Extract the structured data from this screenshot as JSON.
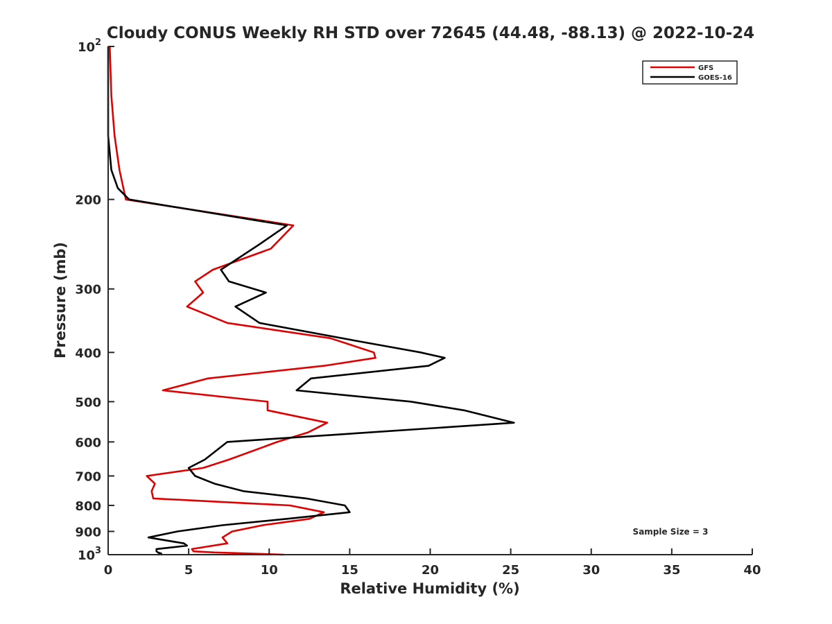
{
  "chart_data": {
    "type": "line",
    "title": "Cloudy CONUS Weekly RH STD over 72645 (44.48, -88.13) @ 2022-10-24",
    "xlabel": "Relative Humidity (%)",
    "ylabel": "Pressure (mb)",
    "xlim": [
      0,
      40
    ],
    "ylim": [
      100,
      1000
    ],
    "y_scale": "log",
    "y_reversed": true,
    "grid": false,
    "legend_position": "top-right",
    "x_ticks": [
      "0",
      "5",
      "10",
      "15",
      "20",
      "25",
      "30",
      "35",
      "40"
    ],
    "y_ticks": [
      {
        "value": 100,
        "base": "10",
        "exp": "2"
      },
      {
        "value": 200,
        "label": "200"
      },
      {
        "value": 300,
        "label": "300"
      },
      {
        "value": 400,
        "label": "400"
      },
      {
        "value": 500,
        "label": "500"
      },
      {
        "value": 600,
        "label": "600"
      },
      {
        "value": 700,
        "label": "700"
      },
      {
        "value": 800,
        "label": "800"
      },
      {
        "value": 900,
        "label": "900"
      },
      {
        "value": 1000,
        "base": "10",
        "exp": "3"
      }
    ],
    "annotation": "Sample Size = 3",
    "series": [
      {
        "name": "GFS",
        "color": "#e00000",
        "points": [
          [
            0.1,
            100
          ],
          [
            0.2,
            125
          ],
          [
            0.4,
            150
          ],
          [
            0.7,
            175
          ],
          [
            1.1,
            200
          ],
          [
            11.5,
            225
          ],
          [
            10.1,
            250
          ],
          [
            6.5,
            275
          ],
          [
            5.4,
            290
          ],
          [
            5.9,
            305
          ],
          [
            4.9,
            325
          ],
          [
            7.4,
            350
          ],
          [
            13.8,
            375
          ],
          [
            16.5,
            400
          ],
          [
            16.6,
            410
          ],
          [
            13.4,
            425
          ],
          [
            6.2,
            450
          ],
          [
            3.4,
            475
          ],
          [
            9.9,
            500
          ],
          [
            9.9,
            520
          ],
          [
            13.6,
            550
          ],
          [
            12.4,
            575
          ],
          [
            10.5,
            600
          ],
          [
            7.5,
            650
          ],
          [
            5.9,
            675
          ],
          [
            2.4,
            700
          ],
          [
            2.9,
            725
          ],
          [
            2.7,
            750
          ],
          [
            2.8,
            775
          ],
          [
            11.3,
            800
          ],
          [
            13.4,
            825
          ],
          [
            12.5,
            850
          ],
          [
            9.6,
            875
          ],
          [
            7.7,
            900
          ],
          [
            7.1,
            925
          ],
          [
            7.4,
            950
          ],
          [
            5.2,
            975
          ],
          [
            5.3,
            985
          ],
          [
            6.6,
            990
          ],
          [
            8.9,
            995
          ],
          [
            10.9,
            1000
          ]
        ]
      },
      {
        "name": "GOES-16",
        "color": "#000000",
        "points": [
          [
            0.0,
            100
          ],
          [
            0.0,
            125
          ],
          [
            0.0,
            150
          ],
          [
            0.2,
            175
          ],
          [
            0.6,
            190
          ],
          [
            1.3,
            200
          ],
          [
            11.1,
            225
          ],
          [
            9.4,
            245
          ],
          [
            7.0,
            275
          ],
          [
            7.5,
            290
          ],
          [
            9.8,
            305
          ],
          [
            7.9,
            325
          ],
          [
            9.4,
            350
          ],
          [
            15.5,
            380
          ],
          [
            19.4,
            400
          ],
          [
            20.9,
            410
          ],
          [
            19.9,
            425
          ],
          [
            12.6,
            450
          ],
          [
            11.7,
            475
          ],
          [
            18.8,
            500
          ],
          [
            22.1,
            520
          ],
          [
            25.2,
            550
          ],
          [
            7.4,
            600
          ],
          [
            6.0,
            650
          ],
          [
            5.0,
            675
          ],
          [
            5.4,
            700
          ],
          [
            6.6,
            725
          ],
          [
            8.4,
            750
          ],
          [
            12.3,
            775
          ],
          [
            14.7,
            800
          ],
          [
            15.0,
            825
          ],
          [
            11.1,
            850
          ],
          [
            7.1,
            875
          ],
          [
            4.3,
            900
          ],
          [
            2.5,
            925
          ],
          [
            4.7,
            950
          ],
          [
            4.9,
            960
          ],
          [
            3.0,
            975
          ],
          [
            3.0,
            985
          ],
          [
            3.1,
            990
          ],
          [
            3.3,
            995
          ],
          [
            3.1,
            1000
          ]
        ]
      }
    ]
  }
}
